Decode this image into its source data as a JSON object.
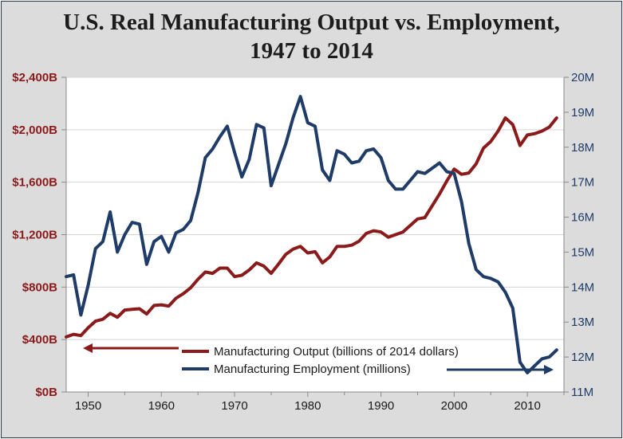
{
  "title_line1": "U.S. Real Manufacturing Output vs. Employment,",
  "title_line2": "1947 to 2014",
  "chart_data": {
    "type": "line",
    "x_range": [
      1947,
      2015
    ],
    "x_ticks": [
      1950,
      1960,
      1970,
      1980,
      1990,
      2000,
      2010
    ],
    "left_axis": {
      "min": 0,
      "max": 2400,
      "ticks": [
        0,
        400,
        800,
        1200,
        1600,
        2000,
        2400
      ],
      "tick_labels": [
        "$0B",
        "$400B",
        "$800B",
        "$1,200B",
        "$1,600B",
        "$2,000B",
        "$2,400B"
      ],
      "color": "#8b1a1a"
    },
    "right_axis": {
      "min": 11,
      "max": 20,
      "ticks": [
        11,
        12,
        13,
        14,
        15,
        16,
        17,
        18,
        19,
        20
      ],
      "tick_labels": [
        "11M",
        "12M",
        "13M",
        "14M",
        "15M",
        "16M",
        "17M",
        "18M",
        "19M",
        "20M"
      ],
      "color": "#1f3c68"
    },
    "grid": true,
    "legend_placement": "bottom",
    "series": [
      {
        "name": "Manufacturing Output (billions of 2014 dollars)",
        "axis": "left",
        "color": "#8b1a1a",
        "points": [
          [
            1947,
            420
          ],
          [
            1948,
            440
          ],
          [
            1949,
            430
          ],
          [
            1950,
            490
          ],
          [
            1951,
            540
          ],
          [
            1952,
            555
          ],
          [
            1953,
            600
          ],
          [
            1954,
            570
          ],
          [
            1955,
            625
          ],
          [
            1956,
            630
          ],
          [
            1957,
            635
          ],
          [
            1958,
            595
          ],
          [
            1959,
            660
          ],
          [
            1960,
            665
          ],
          [
            1961,
            655
          ],
          [
            1962,
            715
          ],
          [
            1963,
            750
          ],
          [
            1964,
            795
          ],
          [
            1965,
            860
          ],
          [
            1966,
            915
          ],
          [
            1967,
            905
          ],
          [
            1968,
            945
          ],
          [
            1969,
            945
          ],
          [
            1970,
            880
          ],
          [
            1971,
            890
          ],
          [
            1972,
            930
          ],
          [
            1973,
            985
          ],
          [
            1974,
            960
          ],
          [
            1975,
            905
          ],
          [
            1976,
            975
          ],
          [
            1977,
            1050
          ],
          [
            1978,
            1090
          ],
          [
            1979,
            1110
          ],
          [
            1980,
            1060
          ],
          [
            1981,
            1070
          ],
          [
            1982,
            985
          ],
          [
            1983,
            1030
          ],
          [
            1984,
            1110
          ],
          [
            1985,
            1110
          ],
          [
            1986,
            1120
          ],
          [
            1987,
            1150
          ],
          [
            1988,
            1210
          ],
          [
            1989,
            1230
          ],
          [
            1990,
            1220
          ],
          [
            1991,
            1180
          ],
          [
            1992,
            1200
          ],
          [
            1993,
            1220
          ],
          [
            1994,
            1270
          ],
          [
            1995,
            1320
          ],
          [
            1996,
            1330
          ],
          [
            1997,
            1420
          ],
          [
            1998,
            1510
          ],
          [
            1999,
            1610
          ],
          [
            2000,
            1700
          ],
          [
            2001,
            1660
          ],
          [
            2002,
            1670
          ],
          [
            2003,
            1740
          ],
          [
            2004,
            1860
          ],
          [
            2005,
            1910
          ],
          [
            2006,
            1990
          ],
          [
            2007,
            2090
          ],
          [
            2008,
            2040
          ],
          [
            2009,
            1880
          ],
          [
            2010,
            1960
          ],
          [
            2011,
            1970
          ],
          [
            2012,
            1990
          ],
          [
            2013,
            2020
          ],
          [
            2014,
            2090
          ]
        ]
      },
      {
        "name": "Manufacturing Employment (millions)",
        "axis": "right",
        "color": "#1f3c68",
        "points": [
          [
            1947,
            14.3
          ],
          [
            1948,
            14.35
          ],
          [
            1949,
            13.2
          ],
          [
            1950,
            14.05
          ],
          [
            1951,
            15.1
          ],
          [
            1952,
            15.3
          ],
          [
            1953,
            16.15
          ],
          [
            1954,
            15.0
          ],
          [
            1955,
            15.5
          ],
          [
            1956,
            15.85
          ],
          [
            1957,
            15.8
          ],
          [
            1958,
            14.65
          ],
          [
            1959,
            15.3
          ],
          [
            1960,
            15.45
          ],
          [
            1961,
            15.0
          ],
          [
            1962,
            15.55
          ],
          [
            1963,
            15.65
          ],
          [
            1964,
            15.9
          ],
          [
            1965,
            16.7
          ],
          [
            1966,
            17.7
          ],
          [
            1967,
            17.95
          ],
          [
            1968,
            18.3
          ],
          [
            1969,
            18.6
          ],
          [
            1970,
            17.85
          ],
          [
            1971,
            17.15
          ],
          [
            1972,
            17.65
          ],
          [
            1973,
            18.65
          ],
          [
            1974,
            18.55
          ],
          [
            1975,
            16.9
          ],
          [
            1976,
            17.5
          ],
          [
            1977,
            18.1
          ],
          [
            1978,
            18.85
          ],
          [
            1979,
            19.45
          ],
          [
            1980,
            18.7
          ],
          [
            1981,
            18.6
          ],
          [
            1982,
            17.35
          ],
          [
            1983,
            17.05
          ],
          [
            1984,
            17.9
          ],
          [
            1985,
            17.8
          ],
          [
            1986,
            17.55
          ],
          [
            1987,
            17.6
          ],
          [
            1988,
            17.9
          ],
          [
            1989,
            17.95
          ],
          [
            1990,
            17.7
          ],
          [
            1991,
            17.05
          ],
          [
            1992,
            16.8
          ],
          [
            1993,
            16.8
          ],
          [
            1994,
            17.05
          ],
          [
            1995,
            17.3
          ],
          [
            1996,
            17.25
          ],
          [
            1997,
            17.4
          ],
          [
            1998,
            17.55
          ],
          [
            1999,
            17.3
          ],
          [
            2000,
            17.25
          ],
          [
            2001,
            16.45
          ],
          [
            2002,
            15.25
          ],
          [
            2003,
            14.5
          ],
          [
            2004,
            14.3
          ],
          [
            2005,
            14.25
          ],
          [
            2006,
            14.15
          ],
          [
            2007,
            13.85
          ],
          [
            2008,
            13.4
          ],
          [
            2009,
            11.85
          ],
          [
            2010,
            11.55
          ],
          [
            2011,
            11.75
          ],
          [
            2012,
            11.95
          ],
          [
            2013,
            12.0
          ],
          [
            2014,
            12.2
          ]
        ]
      }
    ]
  }
}
